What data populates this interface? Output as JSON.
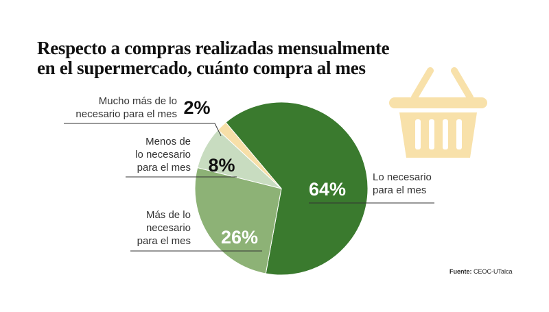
{
  "title": {
    "line1": "Respecto a compras realizadas mensualmente",
    "line2": "en el supermercado, cuánto compra al mes"
  },
  "chart_data": {
    "type": "pie",
    "title": "Respecto a compras realizadas mensualmente en el supermercado, cuánto compra al mes",
    "slices": [
      {
        "label_lines": [
          "Lo necesario",
          "para el mes"
        ],
        "value": 64,
        "display": "64%",
        "color": "#3a7a2e"
      },
      {
        "label_lines": [
          "Más de lo",
          "necesario",
          "para el mes"
        ],
        "value": 26,
        "display": "26%",
        "color": "#8db276"
      },
      {
        "label_lines": [
          "Menos de",
          "lo necesario",
          "para el mes"
        ],
        "value": 8,
        "display": "8%",
        "color": "#c8dcc0"
      },
      {
        "label_lines": [
          "Mucho más de lo",
          "necesario para el mes"
        ],
        "value": 2,
        "display": "2%",
        "color": "#f7dfa8"
      }
    ]
  },
  "source": {
    "label": "Fuente:",
    "text": "CEOC-UTalca"
  },
  "icon": {
    "name": "shopping-basket-icon",
    "color": "#f8e1aa"
  }
}
